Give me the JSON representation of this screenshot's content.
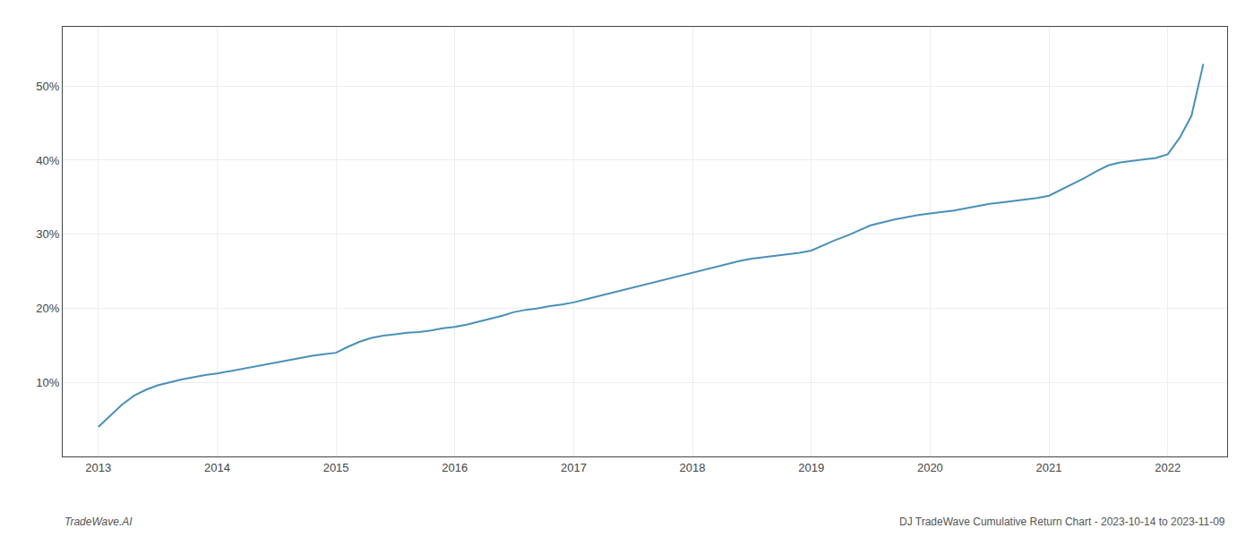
{
  "chart_data": {
    "type": "line",
    "annotations": [
      "TradeWave.AI",
      "DJ TradeWave Cumulative Return Chart - 2023-10-14 to 2023-11-09"
    ],
    "x": [
      2013.0,
      2013.1,
      2013.2,
      2013.3,
      2013.4,
      2013.5,
      2013.6,
      2013.7,
      2013.8,
      2013.9,
      2014.0,
      2014.1,
      2014.2,
      2014.3,
      2014.4,
      2014.5,
      2014.6,
      2014.7,
      2014.8,
      2014.9,
      2015.0,
      2015.1,
      2015.2,
      2015.3,
      2015.4,
      2015.5,
      2015.6,
      2015.7,
      2015.8,
      2015.9,
      2016.0,
      2016.1,
      2016.2,
      2016.3,
      2016.4,
      2016.5,
      2016.6,
      2016.7,
      2016.8,
      2016.9,
      2017.0,
      2017.1,
      2017.2,
      2017.3,
      2017.4,
      2017.5,
      2017.6,
      2017.7,
      2017.8,
      2017.9,
      2018.0,
      2018.1,
      2018.2,
      2018.3,
      2018.4,
      2018.5,
      2018.6,
      2018.7,
      2018.8,
      2018.9,
      2019.0,
      2019.1,
      2019.2,
      2019.3,
      2019.4,
      2019.5,
      2019.6,
      2019.7,
      2019.8,
      2019.9,
      2020.0,
      2020.1,
      2020.2,
      2020.3,
      2020.4,
      2020.5,
      2020.6,
      2020.7,
      2020.8,
      2020.9,
      2021.0,
      2021.1,
      2021.2,
      2021.3,
      2021.4,
      2021.5,
      2021.6,
      2021.7,
      2021.8,
      2021.9,
      2022.0,
      2022.1,
      2022.2,
      2022.3
    ],
    "values": [
      0.04,
      0.055,
      0.07,
      0.082,
      0.09,
      0.096,
      0.1,
      0.104,
      0.107,
      0.11,
      0.112,
      0.115,
      0.118,
      0.121,
      0.124,
      0.127,
      0.13,
      0.133,
      0.136,
      0.138,
      0.14,
      0.148,
      0.155,
      0.16,
      0.163,
      0.165,
      0.167,
      0.168,
      0.17,
      0.173,
      0.175,
      0.178,
      0.182,
      0.186,
      0.19,
      0.195,
      0.198,
      0.2,
      0.203,
      0.205,
      0.208,
      0.212,
      0.216,
      0.22,
      0.224,
      0.228,
      0.232,
      0.236,
      0.24,
      0.244,
      0.248,
      0.252,
      0.256,
      0.26,
      0.264,
      0.267,
      0.269,
      0.271,
      0.273,
      0.275,
      0.278,
      0.285,
      0.292,
      0.298,
      0.305,
      0.312,
      0.316,
      0.32,
      0.323,
      0.326,
      0.328,
      0.33,
      0.332,
      0.335,
      0.338,
      0.341,
      0.343,
      0.345,
      0.347,
      0.349,
      0.352,
      0.36,
      0.368,
      0.376,
      0.385,
      0.393,
      0.397,
      0.399,
      0.401,
      0.403,
      0.408,
      0.43,
      0.46,
      0.53
    ],
    "color": "#4a90b8",
    "xlim": [
      2012.7,
      2022.5
    ],
    "xticks": [
      2013,
      2014,
      2015,
      2016,
      2017,
      2018,
      2019,
      2020,
      2021,
      2022
    ],
    "ylim": [
      0.0,
      0.58
    ],
    "yticks": [
      {
        "value": 0.1,
        "label": "10%"
      },
      {
        "value": 0.2,
        "label": "20%"
      },
      {
        "value": 0.3,
        "label": "30%"
      },
      {
        "value": 0.4,
        "label": "40%"
      },
      {
        "value": 0.5,
        "label": "50%"
      }
    ],
    "grid": true
  }
}
